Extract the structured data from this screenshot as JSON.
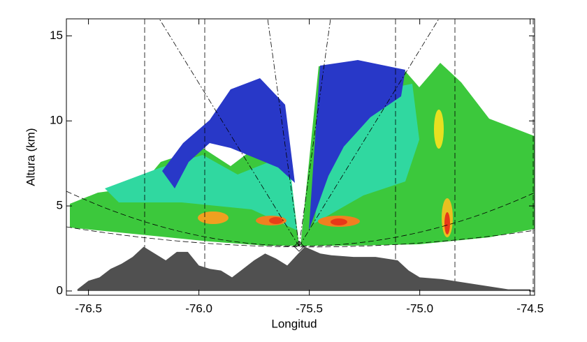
{
  "chart_data": {
    "type": "area",
    "x_label": "Longitud",
    "y_label": "Altura (km)",
    "xlim": [
      -76.6,
      -74.48
    ],
    "ylim": [
      -0.25,
      16
    ],
    "xticks": [
      -76.5,
      {
        "value": -76,
        "label": "-76.0"
      },
      -75.5,
      {
        "value": -75,
        "label": "-75.0"
      },
      -74.5
    ],
    "yticks": [
      0,
      5,
      10,
      15
    ],
    "series": [
      {
        "color": "#505050",
        "x": [
          -76.55,
          -76.5,
          -76.45,
          -76.4,
          -76.35,
          -76.3,
          -76.25,
          -76.2,
          -76.15,
          -76.1,
          -76.05,
          -76.0,
          -75.95,
          -75.9,
          -75.85,
          -75.8,
          -75.75,
          -75.7,
          -75.65,
          -75.6,
          -75.55,
          -75.52,
          -75.45,
          -75.4,
          -75.3,
          -75.2,
          -75.1,
          -75.05,
          -75.0,
          -74.9,
          -74.8,
          -74.7,
          -74.6,
          -74.5
        ],
        "values": [
          0.1,
          0.6,
          0.8,
          1.3,
          1.6,
          2.0,
          2.6,
          2.2,
          1.8,
          2.3,
          2.3,
          1.5,
          1.3,
          1.2,
          0.8,
          1.3,
          1.8,
          2.2,
          1.9,
          1.5,
          2.2,
          2.6,
          2.2,
          2.1,
          2.0,
          2.0,
          1.8,
          1.2,
          0.8,
          0.7,
          0.5,
          0.3,
          0.1,
          0.1
        ]
      }
    ]
  }
}
